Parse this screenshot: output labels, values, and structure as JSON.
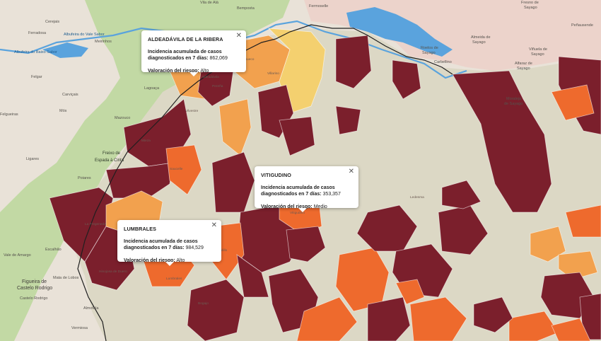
{
  "colors": {
    "background": "#e9e2d8",
    "portugal_green": "#c2d9a4",
    "fill_gray": "#dcd8c5",
    "fill_dark": "#7b1f2c",
    "fill_orange": "#ee6a2d",
    "fill_light_orange": "#f2a14e",
    "fill_yellow": "#f4d06f",
    "water": "#5aa3dd",
    "pink_region": "#ecd3cb"
  },
  "places": {
    "pt_villa_ala": "Vila de Alá",
    "pt_bemposta": "Bemposta",
    "pt_fermoselle": "Fermoselle",
    "pt_cerejais": "Cerejais",
    "pt_ferradosa": "Ferradosa",
    "pt_albufeira_valeiro": "Albufeira do Vale Sabor",
    "pt_albufeira_saucelle": "Albufeira do Baixo Sabor",
    "pt_meirinhos": "Meirinhos",
    "pt_felgar": "Felgar",
    "pt_carvicais": "Carviçais",
    "pt_lagoaca": "Lagoaça",
    "pt_felgueiras": "Felgueiras",
    "pt_mos": "Mós",
    "pt_mazouco": "Mazouco",
    "pt_freixo": "Freixo de",
    "pt_freixo2": "Espada à Cinta",
    "pt_ligares": "Ligares",
    "pt_poiares": "Poiares",
    "pt_escalhao": "Escalhão",
    "pt_amargo": "Vale de Amargo",
    "pt_figueira": "Figueira de",
    "pt_figueira2": "Castelo Rodrigo",
    "pt_mata": "Mata de Lobos",
    "pt_castelo": "Castelo Rodrigo",
    "pt_almofala": "Almofala",
    "pt_vermiosa": "Vermiosa",
    "es_fresno": "Fresno de",
    "es_fresno2": "Sayago",
    "es_penausende": "Peñausende",
    "es_almeida": "Almeida de",
    "es_almeida2": "Sayago",
    "es_villar": "Villar del Buey",
    "es_moraleja": "Moraleja",
    "es_moraleja2": "de Sayago",
    "es_carbellino": "Carbellino",
    "es_alfaraz": "Alfaraz de",
    "es_alfaraz2": "Sayago",
    "es_viñuela": "Viñuela de",
    "es_viñuela2": "Sayago",
    "es_roelos": "Roelos de",
    "es_roelos2": "Sayago",
    "es_fermoselle_town": "Fermoselle",
    "muni_mieza": "Mieza",
    "muni_vilvestre": "Vilvestre",
    "muni_saucelle": "Saucelle",
    "muni_vitigudino": "Vitigudino",
    "muni_lumbrales": "Lumbrales",
    "muni_hinojosa": "Hinojosa de Duero",
    "muni_ledesma": "Ledesma",
    "muni_villarino": "Villarino",
    "muni_pereña": "Pereña",
    "muni_masueco": "Masueco",
    "muni_aldeadavila": "Aldeadávila",
    "muni_la_fregeneda": "La Fregeneda",
    "muni_sobradillo": "Sobradillo",
    "muni_bogajo": "Bogajo"
  },
  "popups": [
    {
      "id": "aldeadavila",
      "title": "ALDEADÁVILA DE LA RIBERA",
      "incidence_label": "Incidencia acumulada de casos diagnosticados en 7 días:",
      "incidence_value": "862,069",
      "risk_label": "Valoración del riesgo:",
      "risk_value": "Alto"
    },
    {
      "id": "vitigudino",
      "title": "VITIGUDINO",
      "incidence_label": "Incidencia acumulada de casos diagnosticados en 7 días:",
      "incidence_value": "353,357",
      "risk_label": "Valoración del riesgo:",
      "risk_value": "Medio"
    },
    {
      "id": "lumbrales",
      "title": "LUMBRALES",
      "incidence_label": "Incidencia acumulada de casos diagnosticados en 7 días:",
      "incidence_value": "984,529",
      "risk_label": "Valoración del riesgo:",
      "risk_value": "Alto"
    }
  ],
  "close_glyph": "✕"
}
